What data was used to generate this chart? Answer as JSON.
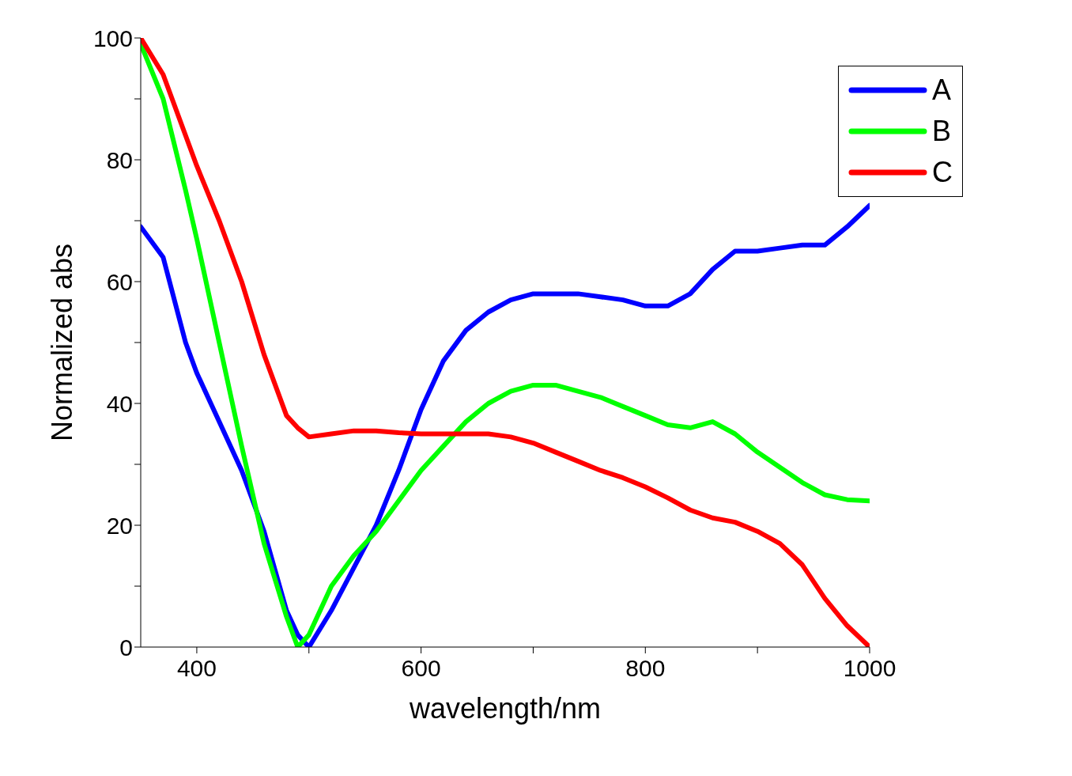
{
  "chart_data": {
    "type": "line",
    "xlabel": "wavelength/nm",
    "ylabel": "Normalized abs",
    "xlim": [
      350,
      1000
    ],
    "ylim": [
      0,
      100
    ],
    "xticks": [
      400,
      {
        "value": 500,
        "label": null
      },
      600,
      {
        "value": 700,
        "label": null
      },
      800,
      {
        "value": 900,
        "label": null
      },
      1000
    ],
    "yticks": [
      0,
      {
        "value": 10,
        "label": null
      },
      20,
      {
        "value": 30,
        "label": null
      },
      40,
      {
        "value": 50,
        "label": null
      },
      60,
      {
        "value": 70,
        "label": null
      },
      80,
      {
        "value": 90,
        "label": null
      },
      100
    ],
    "grid": false,
    "legend": "top right",
    "marker": "none",
    "line_style": "solid",
    "x": [
      350,
      370,
      390,
      400,
      420,
      440,
      460,
      480,
      490,
      500,
      520,
      540,
      560,
      580,
      600,
      620,
      640,
      660,
      680,
      700,
      720,
      740,
      760,
      780,
      800,
      820,
      840,
      860,
      880,
      900,
      920,
      940,
      960,
      980,
      1000
    ],
    "series": [
      {
        "name": "A",
        "color": "#0000ff",
        "values": [
          69,
          64,
          50,
          45,
          37,
          29,
          19,
          6,
          2,
          0,
          6,
          13,
          20,
          29,
          39,
          47,
          52,
          55,
          57,
          58,
          58,
          58,
          57.5,
          57,
          56,
          56,
          58,
          62,
          65,
          65,
          65.5,
          66,
          66,
          69,
          72.5
        ]
      },
      {
        "name": "B",
        "color": "#00ff00",
        "values": [
          99,
          90,
          75,
          67,
          50,
          33,
          17,
          5,
          0,
          2,
          10,
          15,
          19,
          24,
          29,
          33,
          37,
          40,
          42,
          43,
          43,
          42,
          41,
          39.5,
          38,
          36.5,
          36,
          37,
          35,
          32,
          29.5,
          27,
          25,
          24.2,
          24
        ]
      },
      {
        "name": "C",
        "color": "#ff0000",
        "values": [
          100,
          94,
          84,
          79,
          70,
          60,
          48,
          38,
          36,
          34.5,
          35,
          35.5,
          35.5,
          35.2,
          35,
          35,
          35,
          35,
          34.5,
          33.5,
          32,
          30.5,
          29,
          27.8,
          26.3,
          24.5,
          22.5,
          21.2,
          20.5,
          19,
          17,
          13.5,
          8,
          3.5,
          0
        ]
      }
    ]
  }
}
